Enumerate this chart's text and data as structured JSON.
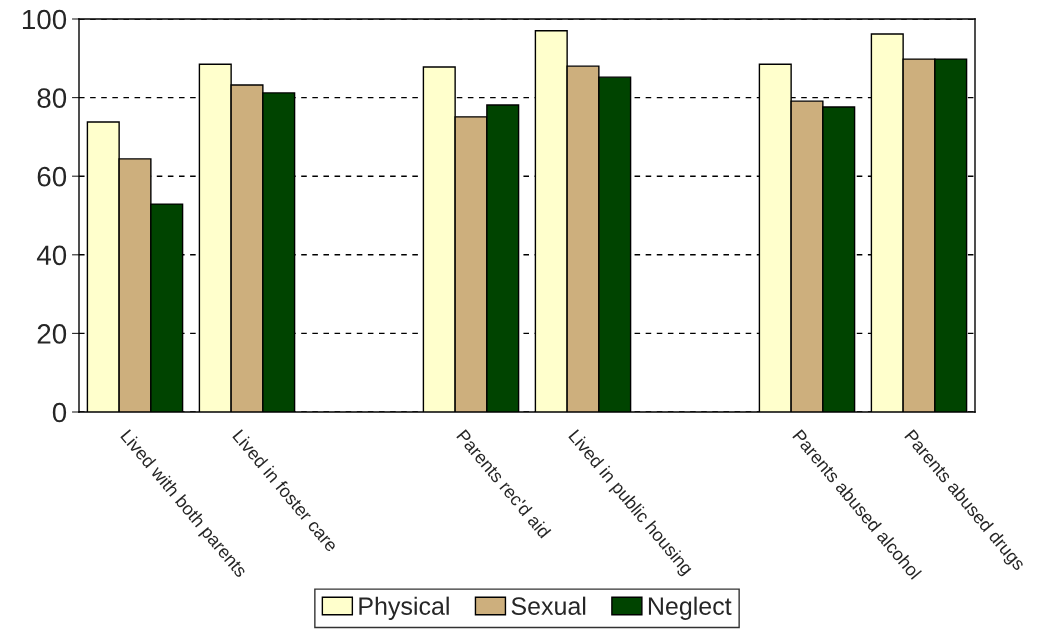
{
  "chart_data": {
    "type": "bar",
    "categories": [
      "Lived with both parents",
      "Lived in foster care",
      null,
      "Parents rec'd aid",
      "Lived in public housing",
      null,
      "Parents abused alcohol",
      "Parents abused drugs"
    ],
    "series": [
      {
        "name": "Physical",
        "color": "#ffffcc",
        "values": [
          73.8,
          88.5,
          null,
          87.8,
          97,
          null,
          88.5,
          96.2
        ]
      },
      {
        "name": "Sexual",
        "color": "#cdaf7d",
        "values": [
          64.4,
          83.2,
          null,
          75.1,
          88,
          null,
          79.1,
          89.8
        ]
      },
      {
        "name": "Neglect",
        "color": "#004400",
        "values": [
          52.9,
          81.2,
          null,
          78.1,
          85.2,
          null,
          77.6,
          89.8
        ]
      }
    ],
    "ylim": [
      0,
      100
    ],
    "yticks": [
      0,
      20,
      40,
      60,
      80,
      100
    ],
    "grid": "y",
    "legend": "bottom"
  }
}
